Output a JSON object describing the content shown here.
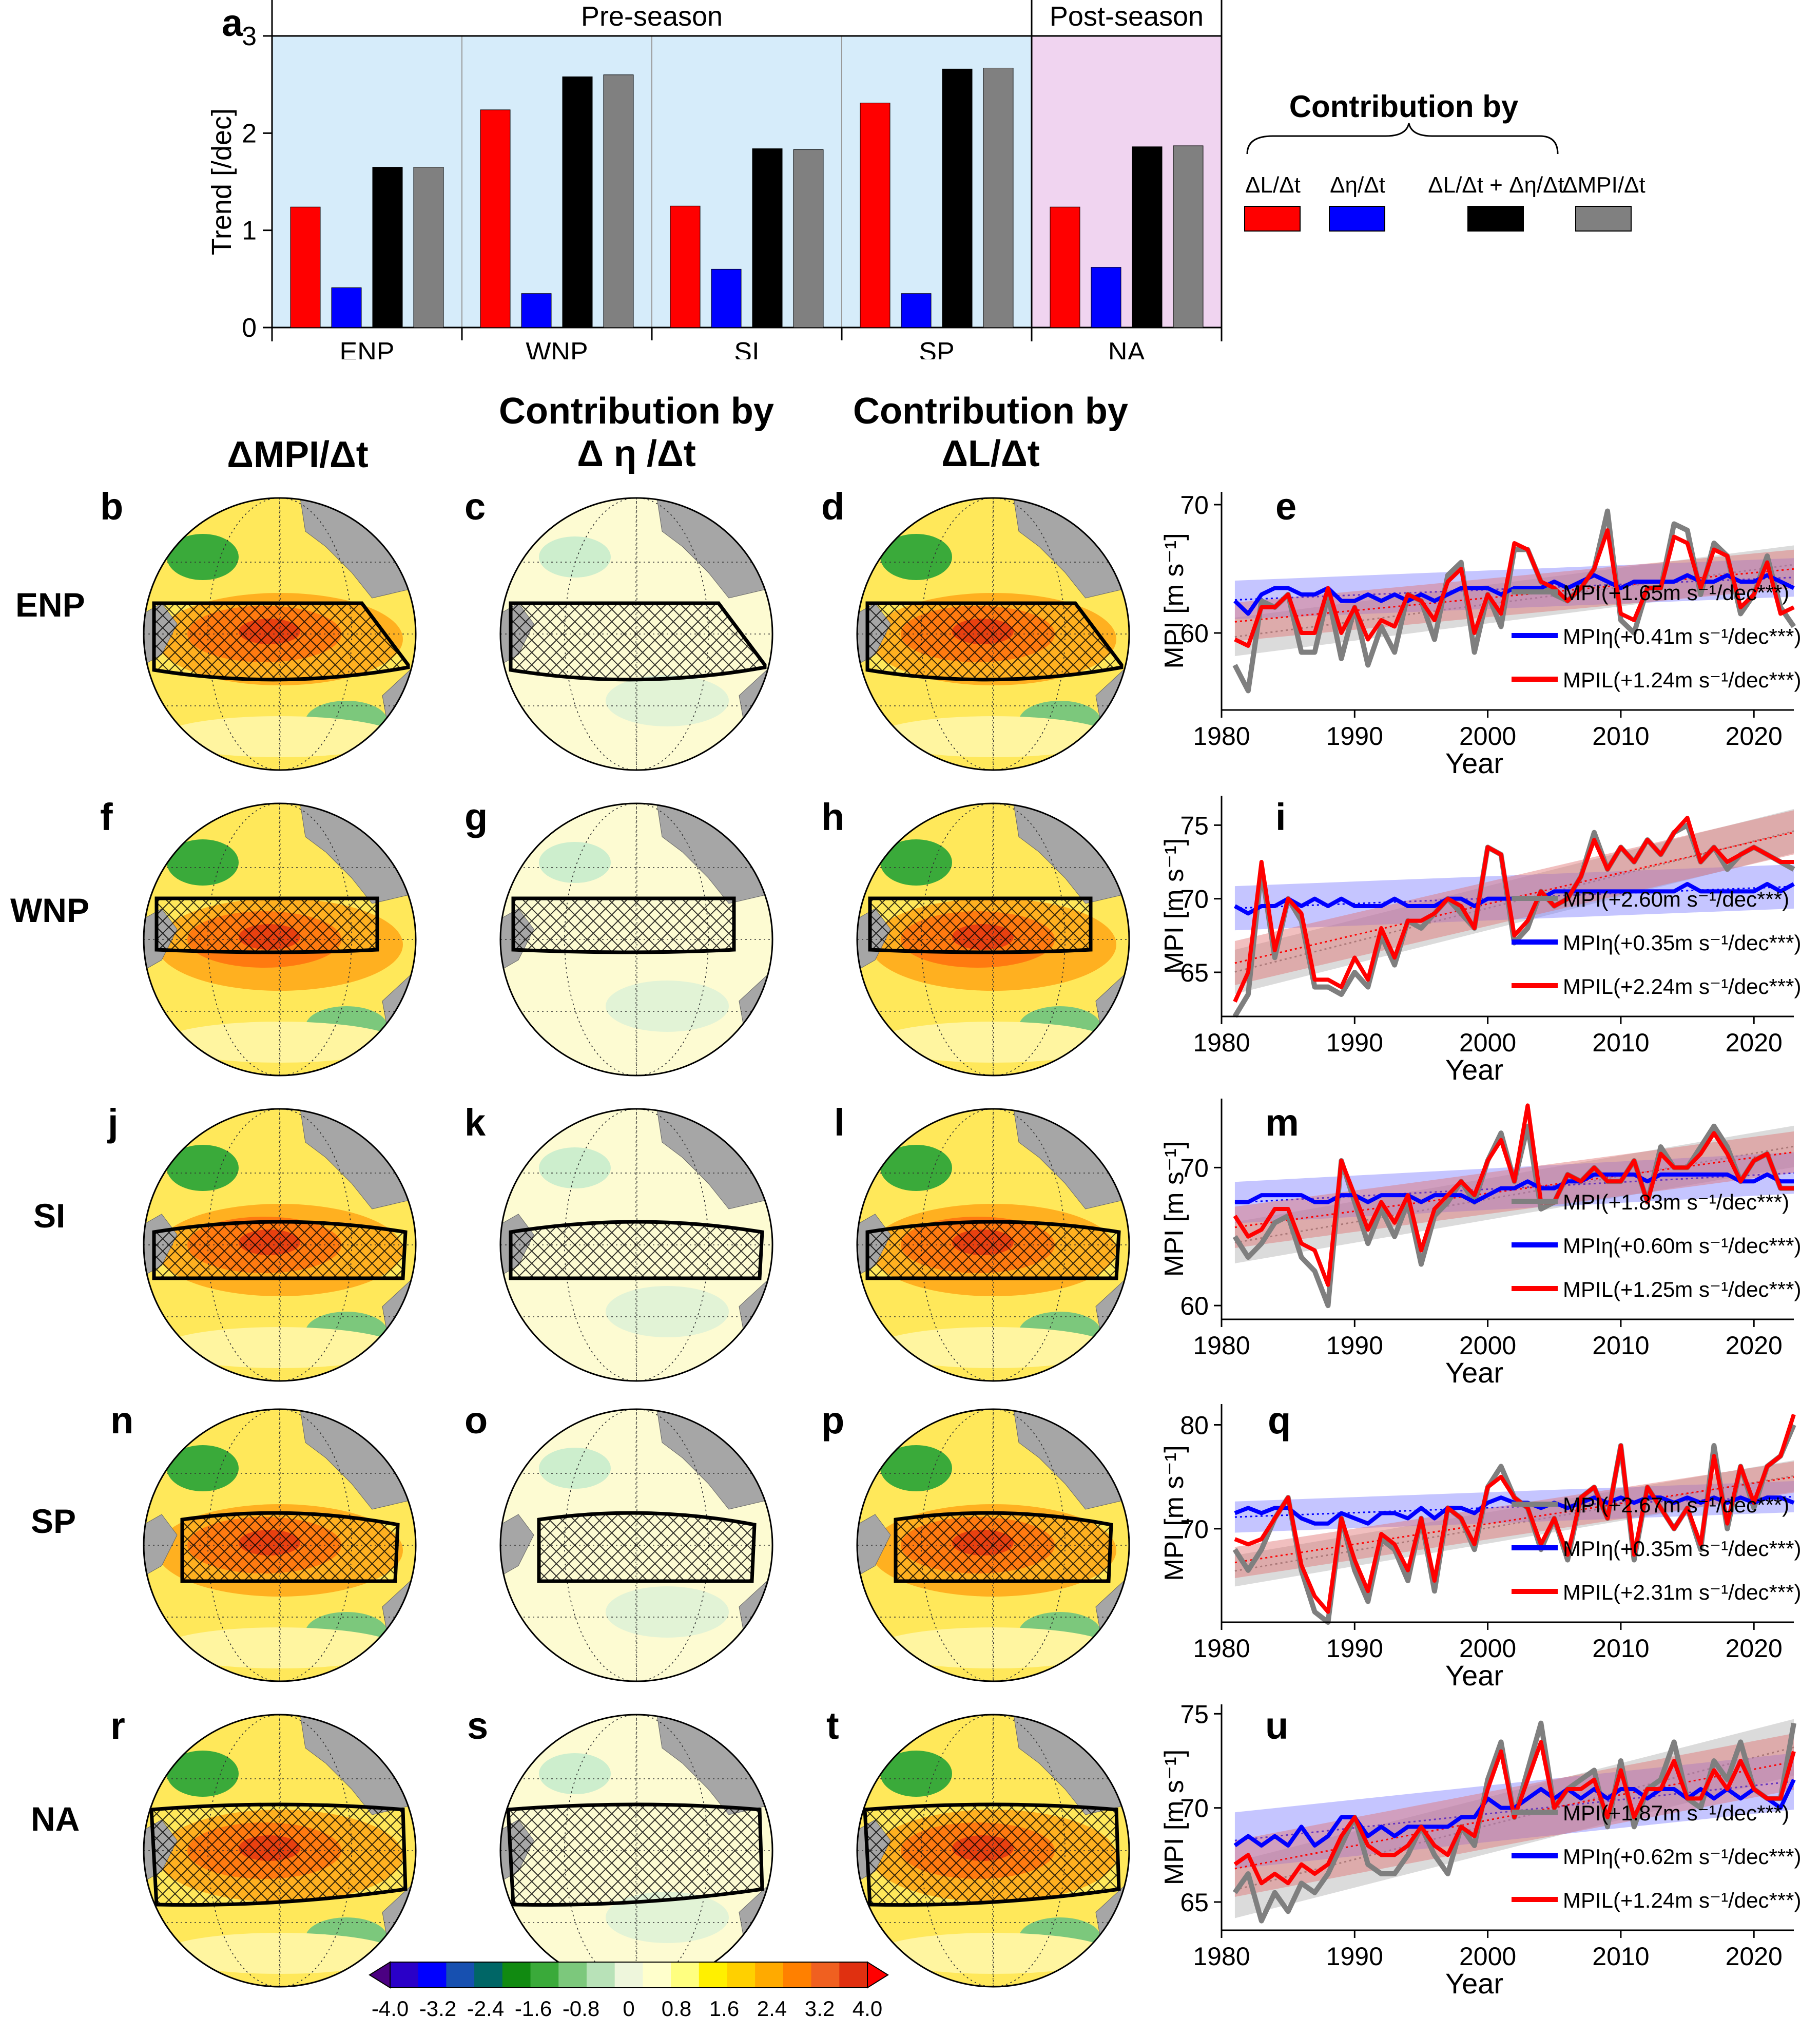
{
  "panel_a": {
    "label": "a",
    "y_axis_label": "Trend [/dec]",
    "group_pre": "Pre-season",
    "group_post": "Post-season",
    "legend_title": "Contribution by",
    "legend_items": [
      {
        "label": "ΔL/Δt",
        "color": "#ff0000"
      },
      {
        "label": "Δη/Δt",
        "color": "#0000ff"
      },
      {
        "label": "ΔL/Δt + Δη/Δt",
        "color": "#000000"
      },
      {
        "label": "ΔMPI/Δt",
        "color": "#808080"
      }
    ],
    "bg_pre": "#d6ecfa",
    "bg_post": "#f0d4f0"
  },
  "column_headers": {
    "col1": "ΔMPI/Δt",
    "col2": [
      "Contribution by",
      "Δ η /Δt"
    ],
    "col3": [
      "Contribution by",
      "ΔL/Δt"
    ]
  },
  "rows": [
    {
      "region": "ENP",
      "labels": [
        "b",
        "c",
        "d",
        "e"
      ]
    },
    {
      "region": "WNP",
      "labels": [
        "f",
        "g",
        "h",
        "i"
      ]
    },
    {
      "region": "SI",
      "labels": [
        "j",
        "k",
        "l",
        "m"
      ]
    },
    {
      "region": "SP",
      "labels": [
        "n",
        "o",
        "p",
        "q"
      ]
    },
    {
      "region": "NA",
      "labels": [
        "r",
        "s",
        "t",
        "u"
      ]
    }
  ],
  "ts_axis": {
    "xlabel": "Year",
    "ylabel": "MPI [m s⁻¹]",
    "xticks": [
      "1980",
      "1990",
      "2000",
      "2010",
      "2020"
    ]
  },
  "colorbar": {
    "ticks": [
      "-4.0",
      "-3.2",
      "-2.4",
      "-1.6",
      "-0.8",
      "0",
      "0.8",
      "1.6",
      "2.4",
      "3.2",
      "4.0"
    ],
    "colors": [
      "#4b0082",
      "#2a00c8",
      "#0000ff",
      "#1750b0",
      "#006666",
      "#118a11",
      "#3aaa3a",
      "#7cc87c",
      "#b8e2b8",
      "#eef6dc",
      "#ffffcc",
      "#ffff80",
      "#fff000",
      "#ffd000",
      "#ffaa00",
      "#ff8000",
      "#f06020",
      "#e03010",
      "#ff0000"
    ]
  },
  "chart_data": [
    {
      "type": "bar",
      "title": "",
      "ylabel": "Trend [/dec]",
      "ylim": [
        0,
        3
      ],
      "yticks": [
        0,
        1,
        2,
        3
      ],
      "categories": [
        "ENP",
        "WNP",
        "SI",
        "SP",
        "NA"
      ],
      "series": [
        {
          "name": "ΔL/Δt",
          "values": [
            1.24,
            2.24,
            1.25,
            2.31,
            1.24
          ]
        },
        {
          "name": "Δη/Δt",
          "values": [
            0.41,
            0.35,
            0.6,
            0.35,
            0.62
          ]
        },
        {
          "name": "ΔL/Δt + Δη/Δt",
          "values": [
            1.65,
            2.58,
            1.84,
            2.66,
            1.86
          ]
        },
        {
          "name": "ΔMPI/Δt",
          "values": [
            1.65,
            2.6,
            1.83,
            2.67,
            1.87
          ]
        }
      ]
    },
    {
      "type": "line",
      "panel": "e",
      "region": "ENP",
      "ylim": [
        54,
        71
      ],
      "yticks": [
        60,
        70
      ],
      "xlim": [
        1980,
        2023
      ],
      "x": [
        1981,
        1982,
        1983,
        1984,
        1985,
        1986,
        1987,
        1988,
        1989,
        1990,
        1991,
        1992,
        1993,
        1994,
        1995,
        1996,
        1997,
        1998,
        1999,
        2000,
        2001,
        2002,
        2003,
        2004,
        2005,
        2006,
        2007,
        2008,
        2009,
        2010,
        2011,
        2012,
        2013,
        2014,
        2015,
        2016,
        2017,
        2018,
        2019,
        2020,
        2021,
        2022,
        2023
      ],
      "series": [
        {
          "name": "MPI(+1.65m s⁻¹/dec***)",
          "values": [
            57.5,
            55.5,
            62.5,
            62,
            63,
            58.5,
            58.5,
            63,
            58,
            62,
            57.5,
            60.5,
            58.5,
            63,
            62.5,
            59.5,
            64.5,
            65.5,
            58.5,
            63,
            60.5,
            66.5,
            66.5,
            64,
            63,
            62.5,
            63.5,
            65,
            69.5,
            61,
            60,
            63.5,
            63.5,
            68.5,
            68,
            63,
            67,
            66,
            61.5,
            63,
            66,
            62,
            60.5
          ]
        },
        {
          "name": "MPIη(+0.41m s⁻¹/dec***)",
          "values": [
            62.5,
            61.5,
            63,
            63.5,
            63.5,
            63,
            63,
            63.5,
            62.5,
            62.5,
            63,
            62.5,
            63,
            62.5,
            63,
            62.5,
            63,
            63.5,
            63.5,
            63.5,
            63,
            63.5,
            63.5,
            63.5,
            64,
            63.5,
            64,
            64.5,
            64,
            63.5,
            64,
            64,
            64,
            64,
            64.5,
            64,
            64,
            64.5,
            64,
            64,
            64.5,
            64,
            63.5
          ]
        },
        {
          "name": "MPIL(+1.24m s⁻¹/dec***)",
          "values": [
            59.5,
            59,
            62,
            62,
            63,
            60,
            60,
            63.5,
            60,
            62,
            59.5,
            61,
            60.5,
            63,
            62.5,
            61,
            64,
            65,
            60,
            63,
            61.5,
            67,
            66.5,
            64,
            63.5,
            62.5,
            63.5,
            65,
            68,
            61.5,
            61,
            63.5,
            63.5,
            67.5,
            67,
            63.5,
            66.5,
            66,
            62,
            63,
            65.5,
            61.5,
            62
          ]
        }
      ]
    },
    {
      "type": "line",
      "panel": "i",
      "region": "WNP",
      "ylim": [
        62,
        77
      ],
      "yticks": [
        65,
        70,
        75
      ],
      "xlim": [
        1980,
        2023
      ],
      "x": [
        1981,
        1982,
        1983,
        1984,
        1985,
        1986,
        1987,
        1988,
        1989,
        1990,
        1991,
        1992,
        1993,
        1994,
        1995,
        1996,
        1997,
        1998,
        1999,
        2000,
        2001,
        2002,
        2003,
        2004,
        2005,
        2006,
        2007,
        2008,
        2009,
        2010,
        2011,
        2012,
        2013,
        2014,
        2015,
        2016,
        2017,
        2018,
        2019,
        2020,
        2021,
        2022,
        2023
      ],
      "series": [
        {
          "name": "MPI(+2.60m s⁻¹/dec***)",
          "values": [
            62,
            63.5,
            72,
            66,
            70,
            68.5,
            64,
            64,
            63.5,
            65,
            64,
            67.5,
            65.5,
            68.5,
            68,
            69,
            70,
            69,
            68,
            73.5,
            73,
            67,
            68,
            70.5,
            69.5,
            70,
            71.5,
            74.5,
            72,
            73.5,
            72.5,
            74,
            73,
            74.5,
            75,
            72.5,
            73.5,
            72,
            73,
            73.5,
            73,
            72.5,
            72
          ]
        },
        {
          "name": "MPIη(+0.35m s⁻¹/dec***)",
          "values": [
            69.5,
            69,
            69.5,
            69.5,
            70,
            69.5,
            70,
            69.5,
            70,
            69.5,
            69.5,
            69.5,
            70,
            69.5,
            69.5,
            69.5,
            70,
            70,
            69.5,
            70,
            70,
            70,
            70,
            70,
            70.5,
            70.5,
            70.5,
            70.5,
            70.5,
            70.5,
            70.5,
            70.5,
            70.5,
            70.5,
            71,
            70.5,
            70.5,
            70.5,
            70.5,
            70.5,
            71,
            70.5,
            71
          ]
        },
        {
          "name": "MPIL(+2.24m s⁻¹/dec***)",
          "values": [
            63,
            65,
            72.5,
            66.5,
            70,
            69,
            64.5,
            64.5,
            64,
            66,
            64.5,
            68,
            66,
            68.5,
            68.5,
            69,
            70,
            69.5,
            68,
            73.5,
            73,
            67.5,
            68.5,
            70.5,
            69.5,
            70,
            71.5,
            74,
            72,
            73.5,
            72.5,
            74,
            73,
            74.5,
            75.5,
            72.5,
            73.5,
            72.5,
            73,
            73.5,
            73,
            72.5,
            72.5
          ]
        }
      ]
    },
    {
      "type": "line",
      "panel": "m",
      "region": "SI",
      "ylim": [
        59,
        75
      ],
      "yticks": [
        60,
        70
      ],
      "xlim": [
        1980,
        2023
      ],
      "x": [
        1981,
        1982,
        1983,
        1984,
        1985,
        1986,
        1987,
        1988,
        1989,
        1990,
        1991,
        1992,
        1993,
        1994,
        1995,
        1996,
        1997,
        1998,
        1999,
        2000,
        2001,
        2002,
        2003,
        2004,
        2005,
        2006,
        2007,
        2008,
        2009,
        2010,
        2011,
        2012,
        2013,
        2014,
        2015,
        2016,
        2017,
        2018,
        2019,
        2020,
        2021,
        2022,
        2023
      ],
      "series": [
        {
          "name": "MPI(+1.83m s⁻¹/dec***)",
          "values": [
            65,
            63.5,
            64.5,
            66,
            66.5,
            63.5,
            62.5,
            60,
            70.5,
            67.5,
            64.5,
            67,
            65,
            67.5,
            63,
            66.5,
            67.5,
            69,
            67.5,
            70.5,
            72.5,
            69,
            73,
            67,
            67.5,
            69.5,
            69,
            70,
            69,
            69,
            70.5,
            67.5,
            71.5,
            70,
            70,
            71.5,
            73,
            71.5,
            69,
            70.5,
            71,
            68.5,
            68.5
          ]
        },
        {
          "name": "MPIη(+0.60m s⁻¹/dec***)",
          "values": [
            67.5,
            67.5,
            68,
            68,
            68,
            68,
            67.5,
            67.5,
            68,
            68,
            67.5,
            68,
            68,
            68,
            67.5,
            68,
            68,
            68,
            67.5,
            68,
            68.5,
            68.5,
            69,
            68.5,
            68.5,
            69,
            69,
            69.5,
            69.5,
            69.5,
            69.5,
            69,
            69.5,
            69.5,
            69.5,
            69.5,
            69.5,
            69.5,
            69,
            69,
            69.5,
            69,
            69
          ]
        },
        {
          "name": "MPIL(+1.25m s⁻¹/dec***)",
          "values": [
            66.5,
            65,
            65.5,
            67,
            67,
            64.5,
            64,
            61.5,
            70.5,
            68,
            65.5,
            67.5,
            66,
            68,
            64,
            67,
            68,
            69,
            68,
            70.5,
            72,
            69,
            74.5,
            67.5,
            67.5,
            69.5,
            69,
            70,
            69,
            69,
            70.5,
            67.5,
            71,
            70,
            70,
            71,
            72.5,
            71,
            69,
            70.5,
            71,
            68.5,
            68.5
          ]
        }
      ]
    },
    {
      "type": "line",
      "panel": "q",
      "region": "SP",
      "ylim": [
        61,
        82
      ],
      "yticks": [
        70,
        80
      ],
      "xlim": [
        1980,
        2023
      ],
      "x": [
        1981,
        1982,
        1983,
        1984,
        1985,
        1986,
        1987,
        1988,
        1989,
        1990,
        1991,
        1992,
        1993,
        1994,
        1995,
        1996,
        1997,
        1998,
        1999,
        2000,
        2001,
        2002,
        2003,
        2004,
        2005,
        2006,
        2007,
        2008,
        2009,
        2010,
        2011,
        2012,
        2013,
        2014,
        2015,
        2016,
        2017,
        2018,
        2019,
        2020,
        2021,
        2022,
        2023
      ],
      "series": [
        {
          "name": "MPI(+2.67m s⁻¹/dec***)",
          "values": [
            68,
            66,
            68,
            71,
            73,
            66,
            62,
            61,
            71,
            66,
            63,
            69,
            68,
            65,
            71,
            64,
            72,
            71,
            68,
            74,
            76,
            73,
            72,
            68,
            71,
            67,
            73,
            74,
            71,
            78,
            67,
            74,
            72,
            70,
            72,
            68,
            78,
            70,
            76,
            72,
            76,
            77,
            80
          ]
        },
        {
          "name": "MPIη(+0.35m s⁻¹/dec***)",
          "values": [
            71.5,
            72,
            71.5,
            72,
            72,
            71,
            70.5,
            70.5,
            71.5,
            71,
            70.5,
            71.5,
            71.5,
            71,
            72,
            71,
            72,
            72,
            71.5,
            72.5,
            73,
            72.5,
            72.5,
            72,
            72.5,
            72,
            72.5,
            73,
            72.5,
            73,
            72.5,
            73,
            73,
            72.5,
            73,
            72.5,
            73,
            72.5,
            73,
            72.5,
            73,
            73,
            72.5
          ]
        },
        {
          "name": "MPIL(+2.31m s⁻¹/dec***)",
          "values": [
            69,
            68.5,
            69,
            71,
            73,
            66.5,
            63.5,
            62,
            71,
            67,
            64,
            69.5,
            68.5,
            66,
            71,
            65,
            72,
            71,
            68.5,
            74,
            75,
            73,
            72,
            68.5,
            71,
            67.5,
            73,
            74,
            71,
            78,
            67.5,
            74,
            72,
            70,
            72,
            68.5,
            77,
            70.5,
            76,
            72.5,
            76,
            77,
            81
          ]
        }
      ]
    },
    {
      "type": "line",
      "panel": "u",
      "region": "NA",
      "ylim": [
        63.5,
        75.5
      ],
      "yticks": [
        65,
        70,
        75
      ],
      "xlim": [
        1980,
        2023
      ],
      "x": [
        1981,
        1982,
        1983,
        1984,
        1985,
        1986,
        1987,
        1988,
        1989,
        1990,
        1991,
        1992,
        1993,
        1994,
        1995,
        1996,
        1997,
        1998,
        1999,
        2000,
        2001,
        2002,
        2003,
        2004,
        2005,
        2006,
        2007,
        2008,
        2009,
        2010,
        2011,
        2012,
        2013,
        2014,
        2015,
        2016,
        2017,
        2018,
        2019,
        2020,
        2021,
        2022,
        2023
      ],
      "series": [
        {
          "name": "MPI(+1.87m s⁻¹/dec***)",
          "values": [
            65.5,
            66.5,
            64,
            65.5,
            64.5,
            66,
            65.5,
            66.5,
            68,
            69.5,
            67,
            66.5,
            66.5,
            67.5,
            69,
            67.5,
            66.5,
            69,
            68,
            71.5,
            73.5,
            69.5,
            72,
            74.5,
            70,
            71,
            71.5,
            72,
            69,
            72.5,
            69,
            71,
            71.5,
            73.5,
            70.5,
            70,
            72.5,
            71.5,
            73.5,
            71,
            70.5,
            70.5,
            74.5
          ]
        },
        {
          "name": "MPIη(+0.62m s⁻¹/dec***)",
          "values": [
            68,
            68.5,
            68,
            68.5,
            68,
            69,
            68,
            68.5,
            69.5,
            69.5,
            68.5,
            69,
            68.5,
            69,
            69,
            69,
            69,
            69.5,
            69.5,
            70.5,
            70,
            70,
            70.5,
            71,
            70.5,
            71,
            70.5,
            71,
            70.5,
            71,
            71,
            70.5,
            71,
            71,
            70.5,
            71,
            70.5,
            71,
            70.5,
            71,
            70.5,
            70,
            71.5
          ]
        },
        {
          "name": "MPIL(+1.24m s⁻¹/dec***)",
          "values": [
            67,
            67.5,
            66,
            66.5,
            66,
            67,
            66.5,
            67,
            68.5,
            69.5,
            68,
            67.5,
            67.5,
            68,
            69,
            68,
            67.5,
            69,
            68.5,
            71,
            73,
            69.5,
            71.5,
            73.5,
            70,
            71,
            71,
            71.5,
            69.5,
            72,
            69.5,
            71,
            71,
            72.5,
            70.5,
            70.5,
            72,
            71,
            72.5,
            71,
            70.5,
            70.5,
            73
          ]
        }
      ]
    }
  ]
}
